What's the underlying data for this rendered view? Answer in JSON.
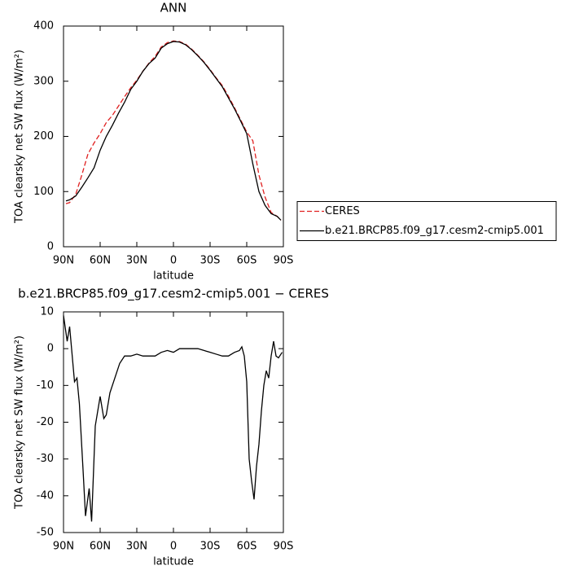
{
  "chart_data": [
    {
      "type": "line",
      "title": "ANN",
      "xlabel": "latitude",
      "ylabel": "TOA clearsky net SW flux (W/m²)",
      "x": [
        88,
        85,
        80,
        75,
        70,
        65,
        60,
        55,
        50,
        45,
        40,
        35,
        30,
        25,
        20,
        15,
        10,
        5,
        0,
        -5,
        -10,
        -15,
        -20,
        -25,
        -30,
        -35,
        -40,
        -45,
        -50,
        -55,
        -60,
        -65,
        -70,
        -75,
        -80,
        -85,
        -88
      ],
      "series": [
        {
          "name": "CERES",
          "color": "#e02020",
          "linestyle": "dashed",
          "values": [
            78,
            80,
            95,
            130,
            168,
            188,
            205,
            225,
            238,
            255,
            272,
            288,
            302,
            318,
            333,
            345,
            362,
            370,
            373,
            372,
            367,
            358,
            347,
            335,
            321,
            306,
            292,
            273,
            252,
            230,
            208,
            192,
            130,
            90,
            62,
            55,
            48
          ]
        },
        {
          "name": "b.e21.BRCP85.f09_g17.cesm2-cmip5.001",
          "color": "#000000",
          "linestyle": "solid",
          "values": [
            83,
            85,
            92,
            108,
            125,
            143,
            175,
            200,
            220,
            242,
            262,
            285,
            300,
            318,
            332,
            342,
            360,
            368,
            372,
            371,
            366,
            357,
            346,
            334,
            320,
            305,
            290,
            270,
            250,
            228,
            205,
            150,
            100,
            75,
            60,
            55,
            48
          ]
        }
      ],
      "xlim": [
        90,
        -90
      ],
      "xticks": [
        {
          "value": 90,
          "label": "90N"
        },
        {
          "value": 60,
          "label": "60N"
        },
        {
          "value": 30,
          "label": "30N"
        },
        0,
        {
          "value": -30,
          "label": "30S"
        },
        {
          "value": -60,
          "label": "60S"
        },
        {
          "value": -90,
          "label": "90S"
        }
      ],
      "ylim": [
        0,
        400
      ],
      "yticks": [
        0,
        100,
        200,
        300,
        400
      ],
      "legend": "right"
    },
    {
      "type": "line",
      "title": "b.e21.BRCP85.f09_g17.cesm2-cmip5.001 − CERES",
      "xlabel": "latitude",
      "ylabel": "TOA clearsky net SW flux (W/m²)",
      "x": [
        90,
        87,
        85,
        81,
        79,
        77,
        74,
        72,
        69,
        67,
        64,
        61,
        60,
        57,
        55,
        52,
        48,
        44,
        40,
        35,
        30,
        25,
        20,
        15,
        10,
        5,
        0,
        -5,
        -10,
        -15,
        -20,
        -25,
        -30,
        -35,
        -40,
        -45,
        -50,
        -54,
        -56,
        -58,
        -60,
        -62,
        -64,
        -66,
        -68,
        -70,
        -72,
        -74,
        -76,
        -78,
        -80,
        -82,
        -84,
        -86,
        -89
      ],
      "values": [
        9,
        2,
        6,
        -9,
        -8,
        -15,
        -33,
        -45.5,
        -38,
        -47,
        -21,
        -15,
        -13,
        -19,
        -18,
        -12,
        -8,
        -4,
        -2,
        -2,
        -1.5,
        -2,
        -2,
        -2,
        -1,
        -0.5,
        -1,
        0,
        0,
        0,
        0,
        -0.5,
        -1,
        -1.5,
        -2,
        -2,
        -1,
        -0.5,
        0.5,
        -2,
        -9,
        -30,
        -36,
        -41,
        -32,
        -26,
        -17,
        -10,
        -6,
        -8,
        -2,
        2,
        -2,
        -2.5,
        -1
      ],
      "color": "#000000",
      "xlim": [
        90,
        -90
      ],
      "xticks": [
        {
          "value": 90,
          "label": "90N"
        },
        {
          "value": 60,
          "label": "60N"
        },
        {
          "value": 30,
          "label": "30N"
        },
        0,
        {
          "value": -30,
          "label": "30S"
        },
        {
          "value": -60,
          "label": "60S"
        },
        {
          "value": -90,
          "label": "90S"
        }
      ],
      "ylim": [
        -50,
        10
      ],
      "yticks": [
        -50,
        -40,
        -30,
        -20,
        -10,
        0,
        10
      ]
    }
  ]
}
